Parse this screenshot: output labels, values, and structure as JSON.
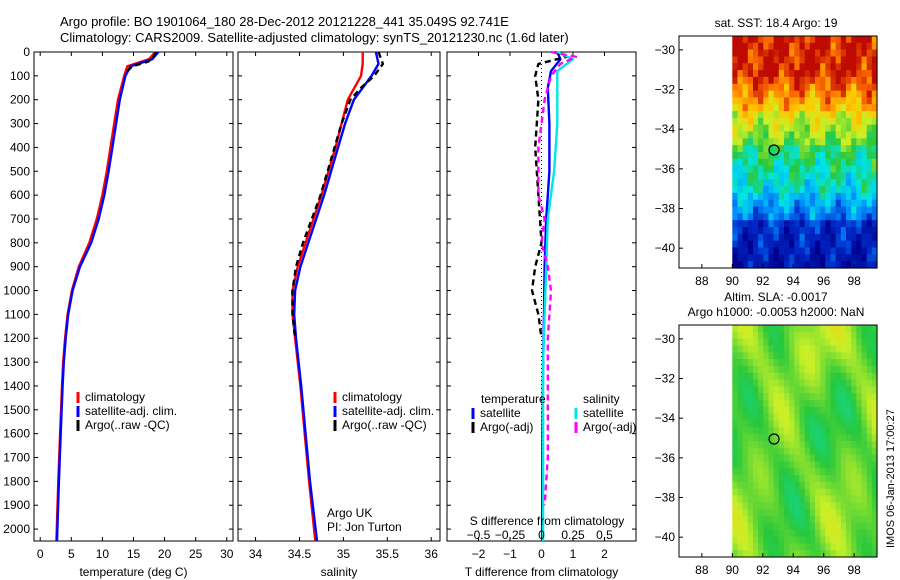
{
  "header": {
    "line1": "Argo profile: BO 1901064_180 28-Dec-2012 20121228_441 35.049S 92.741E",
    "line2": "Climatology: CARS2009. Satellite-adjusted climatology: synTS_20121230.nc (1.6d later)"
  },
  "colors": {
    "climatology": "#ff0000",
    "satellite": "#0000ff",
    "argo": "#000000",
    "sal_satellite": "#00e5e5",
    "sal_argo": "#ff00ff"
  },
  "chart_data": [
    {
      "type": "line",
      "id": "temperature",
      "xlabel": "temperature (deg C)",
      "xlim": [
        -1,
        31
      ],
      "xticks": [
        0,
        5,
        10,
        15,
        20,
        25,
        30
      ],
      "ylim": [
        2050,
        0
      ],
      "yticks": [
        0,
        100,
        200,
        300,
        400,
        500,
        600,
        700,
        800,
        900,
        1000,
        1100,
        1200,
        1300,
        1400,
        1500,
        1600,
        1700,
        1800,
        1900,
        2000
      ],
      "legend": [
        "climatology",
        "satellite-adj. clim.",
        "Argo(..raw -QC)"
      ],
      "series": [
        {
          "name": "climatology",
          "color": "#ff0000",
          "depth": [
            0,
            30,
            60,
            100,
            200,
            300,
            400,
            500,
            600,
            700,
            800,
            900,
            1000,
            1100,
            1200,
            1300,
            1400,
            1600,
            1800,
            2050
          ],
          "values": [
            18.5,
            17.5,
            14.0,
            13.5,
            12.5,
            11.9,
            11.3,
            10.7,
            10.0,
            9.1,
            7.9,
            6.2,
            5.1,
            4.4,
            4.0,
            3.7,
            3.5,
            3.2,
            2.9,
            2.6
          ]
        },
        {
          "name": "satellite-adj. clim.",
          "color": "#0000ff",
          "depth": [
            0,
            30,
            60,
            100,
            200,
            300,
            400,
            500,
            600,
            700,
            800,
            900,
            1000,
            1100,
            1200,
            1300,
            1400,
            1600,
            1800,
            2050
          ],
          "values": [
            19.0,
            18.0,
            14.5,
            13.7,
            12.8,
            12.2,
            11.6,
            11.0,
            10.3,
            9.4,
            8.2,
            6.4,
            5.2,
            4.5,
            4.1,
            3.8,
            3.6,
            3.3,
            3.0,
            2.7
          ]
        },
        {
          "name": "Argo(..raw -QC)",
          "color": "#000000",
          "depth": [
            0,
            20,
            40,
            60,
            80
          ],
          "values": [
            18.6,
            18.2,
            17.4,
            14.8,
            14.0
          ]
        }
      ]
    },
    {
      "type": "line",
      "id": "salinity",
      "xlabel": "salinity",
      "xlim": [
        33.8,
        36.1
      ],
      "xticks": [
        34,
        34.5,
        35,
        35.5,
        36
      ],
      "ylim": [
        2050,
        0
      ],
      "legend": [
        "climatology",
        "satellite-adj. clim.",
        "Argo(..raw -QC)"
      ],
      "annotation": [
        "Argo UK",
        "PI: Jon Turton"
      ],
      "series": [
        {
          "name": "climatology",
          "color": "#ff0000",
          "depth": [
            0,
            50,
            100,
            200,
            300,
            400,
            500,
            600,
            700,
            800,
            900,
            1000,
            1100,
            1200,
            1400,
            1600,
            1800,
            2050
          ],
          "values": [
            35.22,
            35.22,
            35.2,
            35.05,
            34.98,
            34.91,
            34.83,
            34.75,
            34.66,
            34.57,
            34.48,
            34.42,
            34.42,
            34.45,
            34.51,
            34.56,
            34.61,
            34.68
          ]
        },
        {
          "name": "satellite-adj. clim.",
          "color": "#0000ff",
          "depth": [
            0,
            50,
            100,
            200,
            300,
            400,
            500,
            600,
            700,
            800,
            900,
            1000,
            1100,
            1200,
            1400,
            1600,
            1800,
            2050
          ],
          "values": [
            35.37,
            35.4,
            35.32,
            35.12,
            35.02,
            34.94,
            34.86,
            34.78,
            34.69,
            34.6,
            34.51,
            34.45,
            34.44,
            34.46,
            34.52,
            34.57,
            34.62,
            34.7
          ]
        },
        {
          "name": "Argo(..raw -QC)",
          "color": "#000000",
          "depth": [
            0,
            50,
            100,
            150,
            200,
            300,
            400,
            500,
            600,
            700,
            800,
            900,
            1000,
            1100,
            1200
          ],
          "values": [
            35.4,
            35.45,
            35.35,
            35.2,
            35.08,
            34.98,
            34.9,
            34.82,
            34.74,
            34.64,
            34.54,
            34.46,
            34.42,
            34.42,
            34.45
          ]
        }
      ]
    },
    {
      "type": "line",
      "id": "difference",
      "xlabel": "T difference from climatology",
      "x2label": "S difference from climatology",
      "xlim": [
        -3,
        3
      ],
      "xticks": [
        -2,
        -1,
        0,
        1,
        2
      ],
      "x2ticks": [
        -0.5,
        -0.25,
        0,
        0.25,
        0.5
      ],
      "ylim": [
        2050,
        0
      ],
      "legend_temperature_title": "temperature",
      "legend_salinity_title": "salinity",
      "legend": [
        "satellite",
        "Argo(-adj)",
        "satellite",
        "Argo(-adj)"
      ],
      "series": [
        {
          "name": "satellite",
          "color": "#0000ff",
          "depth": [
            0,
            30,
            80,
            150,
            300,
            500,
            700,
            900,
            1100,
            1300,
            1600,
            2050
          ],
          "values": [
            0.5,
            0.6,
            0.3,
            0.2,
            0.25,
            0.25,
            0.15,
            0.1,
            0.08,
            0.05,
            0.03,
            0.02
          ]
        },
        {
          "name": "Argo(-adj)",
          "color": "#000000",
          "depth": [
            0,
            20,
            50,
            100,
            200,
            400,
            600,
            800,
            900,
            1000,
            1100,
            1200
          ],
          "values": [
            0.4,
            0.8,
            -0.1,
            -0.2,
            -0.1,
            -0.2,
            -0.1,
            0.0,
            -0.2,
            -0.3,
            -0.1,
            0.0
          ]
        },
        {
          "name": "satellite",
          "color": "#00e5e5",
          "depth": [
            0,
            30,
            80,
            150,
            300,
            500,
            700,
            900,
            1100,
            1300,
            1600,
            2050
          ],
          "values": [
            0.5,
            1.0,
            0.5,
            0.5,
            0.5,
            0.4,
            0.2,
            0.15,
            0.1,
            0.05,
            0.05,
            0.05
          ]
        },
        {
          "name": "Argo(-adj)",
          "color": "#ff00ff",
          "depth": [
            0,
            20,
            50,
            100,
            200,
            300,
            400,
            500,
            600,
            700,
            800,
            900,
            1000,
            1100,
            1200,
            1700,
            1900
          ],
          "values": [
            0.3,
            1.1,
            0.6,
            0.3,
            0.1,
            0.0,
            -0.1,
            -0.1,
            -0.1,
            0.1,
            0.0,
            0.2,
            0.3,
            0.25,
            0.2,
            0.2,
            0.1
          ]
        }
      ]
    },
    {
      "type": "heatmap",
      "id": "sst_map",
      "title": "sat. SST: 18.4 Argo: 19",
      "xlim": [
        86.5,
        99.5
      ],
      "ylim": [
        -41,
        -29.3
      ],
      "xticks": [
        88,
        90,
        92,
        94,
        96,
        98
      ],
      "yticks": [
        -30,
        -32,
        -34,
        -36,
        -38,
        -40
      ],
      "marker": {
        "lon": 92.741,
        "lat": -35.049
      }
    },
    {
      "type": "heatmap",
      "id": "sla_map",
      "title": "Altim. SLA: -0.0017",
      "subtitle": "Argo h1000: -0.0053 h2000: NaN",
      "xlim": [
        86.5,
        99.5
      ],
      "ylim": [
        -41,
        -29.3
      ],
      "xticks": [
        88,
        90,
        92,
        94,
        96,
        98
      ],
      "yticks": [
        -30,
        -32,
        -34,
        -36,
        -38,
        -40
      ],
      "marker": {
        "lon": 92.741,
        "lat": -35.049
      }
    }
  ],
  "footer": {
    "stamp": "IMOS 06-Jan-2013 17:00:27"
  }
}
